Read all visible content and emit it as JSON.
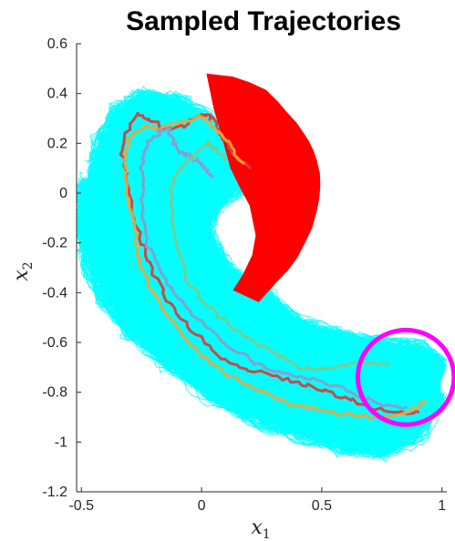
{
  "chart_data": {
    "type": "line",
    "title": "Sampled Trajectories",
    "xlabel": "x1",
    "ylabel": "x2",
    "xlim": [
      -0.52,
      1.02
    ],
    "ylim": [
      -1.2,
      0.6
    ],
    "xticks": [
      -0.5,
      0,
      0.5,
      1
    ],
    "xtick_labels": [
      "-0.5",
      "0",
      "0.5",
      "1"
    ],
    "yticks": [
      0.6,
      0.4,
      0.2,
      0,
      -0.2,
      -0.4,
      -0.6,
      -0.8,
      -1,
      -1.2
    ],
    "ytick_labels": [
      "0.6",
      "0.4",
      "0.2",
      "0",
      "-0.2",
      "-0.4",
      "-0.6",
      "-0.8",
      "-1",
      "-1.2"
    ],
    "grid": false,
    "obstacle": {
      "color": "#ff0000",
      "outline": [
        [
          0.02,
          0.48
        ],
        [
          0.13,
          0.468
        ],
        [
          0.2,
          0.445
        ],
        [
          0.268,
          0.415
        ],
        [
          0.32,
          0.365
        ],
        [
          0.35,
          0.33
        ],
        [
          0.395,
          0.283
        ],
        [
          0.42,
          0.248
        ],
        [
          0.446,
          0.21
        ],
        [
          0.466,
          0.17
        ],
        [
          0.48,
          0.13
        ],
        [
          0.492,
          0.08
        ],
        [
          0.494,
          0.03
        ],
        [
          0.49,
          -0.02
        ],
        [
          0.48,
          -0.07
        ],
        [
          0.46,
          -0.14
        ],
        [
          0.43,
          -0.2
        ],
        [
          0.398,
          -0.26
        ],
        [
          0.36,
          -0.31
        ],
        [
          0.31,
          -0.36
        ],
        [
          0.238,
          -0.438
        ],
        [
          0.13,
          -0.39
        ],
        [
          0.17,
          -0.33
        ],
        [
          0.21,
          -0.25
        ],
        [
          0.225,
          -0.17
        ],
        [
          0.2,
          -0.05
        ],
        [
          0.16,
          0.02
        ],
        [
          0.12,
          0.1
        ],
        [
          0.08,
          0.24
        ],
        [
          0.05,
          0.34
        ]
      ]
    },
    "goal_region": {
      "color": "#ff00ff",
      "center": [
        0.85,
        -0.74
      ],
      "radius_x": 0.2,
      "radius_y": 0.19
    },
    "sample_color": "#00ffff",
    "sample_band": {
      "upper": [
        [
          -0.45,
          0.1
        ],
        [
          -0.42,
          0.22
        ],
        [
          -0.35,
          0.33
        ],
        [
          -0.25,
          0.39
        ],
        [
          -0.1,
          0.37
        ],
        [
          0.05,
          0.28
        ],
        [
          0.16,
          0.17
        ],
        [
          0.2,
          0.06
        ],
        [
          0.15,
          0.02
        ],
        [
          0.05,
          -0.05
        ],
        [
          0.02,
          -0.15
        ],
        [
          0.1,
          -0.3
        ],
        [
          0.25,
          -0.4
        ],
        [
          0.4,
          -0.52
        ],
        [
          0.58,
          -0.58
        ],
        [
          0.72,
          -0.6
        ],
        [
          0.9,
          -0.62
        ],
        [
          1.0,
          -0.68
        ]
      ],
      "lower": [
        [
          1.0,
          -0.82
        ],
        [
          0.9,
          -0.97
        ],
        [
          0.75,
          -1.04
        ],
        [
          0.6,
          -1.02
        ],
        [
          0.45,
          -0.98
        ],
        [
          0.25,
          -0.92
        ],
        [
          0.05,
          -0.82
        ],
        [
          -0.15,
          -0.68
        ],
        [
          -0.3,
          -0.55
        ],
        [
          -0.4,
          -0.42
        ],
        [
          -0.46,
          -0.3
        ],
        [
          -0.5,
          -0.15
        ],
        [
          -0.5,
          0.0
        ],
        [
          -0.47,
          0.06
        ]
      ]
    },
    "series": [
      {
        "color": "#dd3b3b",
        "values": [
          [
            0.2,
            0.1
          ],
          [
            0.13,
            0.16
          ],
          [
            0.08,
            0.23
          ],
          [
            0.05,
            0.3
          ],
          [
            0.0,
            0.32
          ],
          [
            -0.07,
            0.27
          ],
          [
            -0.15,
            0.26
          ],
          [
            -0.22,
            0.3
          ],
          [
            -0.27,
            0.32
          ],
          [
            -0.31,
            0.25
          ],
          [
            -0.33,
            0.15
          ],
          [
            -0.31,
            0.05
          ],
          [
            -0.28,
            -0.1
          ],
          [
            -0.24,
            -0.22
          ],
          [
            -0.2,
            -0.32
          ],
          [
            -0.13,
            -0.45
          ],
          [
            -0.04,
            -0.55
          ],
          [
            0.06,
            -0.65
          ],
          [
            0.16,
            -0.7
          ],
          [
            0.28,
            -0.73
          ],
          [
            0.4,
            -0.76
          ],
          [
            0.5,
            -0.79
          ],
          [
            0.6,
            -0.82
          ],
          [
            0.7,
            -0.86
          ],
          [
            0.82,
            -0.88
          ],
          [
            0.9,
            -0.88
          ]
        ]
      },
      {
        "color": "#f1a43a",
        "values": [
          [
            0.17,
            0.12
          ],
          [
            0.11,
            0.2
          ],
          [
            0.07,
            0.25
          ],
          [
            0.0,
            0.31
          ],
          [
            -0.08,
            0.28
          ],
          [
            -0.17,
            0.26
          ],
          [
            -0.24,
            0.27
          ],
          [
            -0.3,
            0.22
          ],
          [
            -0.32,
            0.15
          ],
          [
            -0.31,
            0.02
          ],
          [
            -0.29,
            -0.1
          ],
          [
            -0.27,
            -0.2
          ],
          [
            -0.25,
            -0.3
          ],
          [
            -0.18,
            -0.44
          ],
          [
            -0.06,
            -0.6
          ],
          [
            0.06,
            -0.7
          ],
          [
            0.18,
            -0.77
          ],
          [
            0.3,
            -0.82
          ],
          [
            0.42,
            -0.86
          ],
          [
            0.55,
            -0.88
          ],
          [
            0.68,
            -0.9
          ],
          [
            0.8,
            -0.9
          ],
          [
            0.9,
            -0.86
          ],
          [
            0.93,
            -0.84
          ]
        ]
      },
      {
        "color": "#8e9bc7",
        "values": [
          [
            0.04,
            0.06
          ],
          [
            0.0,
            0.12
          ],
          [
            -0.03,
            0.14
          ],
          [
            -0.08,
            0.16
          ],
          [
            -0.12,
            0.21
          ],
          [
            -0.14,
            0.26
          ],
          [
            -0.18,
            0.24
          ],
          [
            -0.23,
            0.2
          ],
          [
            -0.25,
            0.12
          ],
          [
            -0.24,
            0.0
          ],
          [
            -0.25,
            -0.1
          ],
          [
            -0.23,
            -0.2
          ],
          [
            -0.18,
            -0.3
          ],
          [
            -0.1,
            -0.42
          ],
          [
            0.0,
            -0.52
          ],
          [
            0.12,
            -0.62
          ],
          [
            0.22,
            -0.68
          ],
          [
            0.32,
            -0.72
          ],
          [
            0.42,
            -0.74
          ],
          [
            0.54,
            -0.77
          ],
          [
            0.66,
            -0.82
          ],
          [
            0.76,
            -0.85
          ],
          [
            0.85,
            -0.86
          ]
        ]
      },
      {
        "color": "#7ec98a",
        "values": [
          [
            0.1,
            0.14
          ],
          [
            0.06,
            0.18
          ],
          [
            0.02,
            0.2
          ],
          [
            -0.03,
            0.15
          ],
          [
            -0.08,
            0.1
          ],
          [
            -0.12,
            0.05
          ],
          [
            -0.13,
            -0.05
          ],
          [
            -0.1,
            -0.2
          ],
          [
            -0.06,
            -0.35
          ],
          [
            0.02,
            -0.45
          ],
          [
            0.12,
            -0.54
          ],
          [
            0.22,
            -0.6
          ],
          [
            0.28,
            -0.63
          ],
          [
            0.34,
            -0.66
          ],
          [
            0.4,
            -0.7
          ],
          [
            0.5,
            -0.71
          ],
          [
            0.6,
            -0.69
          ],
          [
            0.7,
            -0.68
          ],
          [
            0.78,
            -0.69
          ]
        ]
      }
    ]
  }
}
